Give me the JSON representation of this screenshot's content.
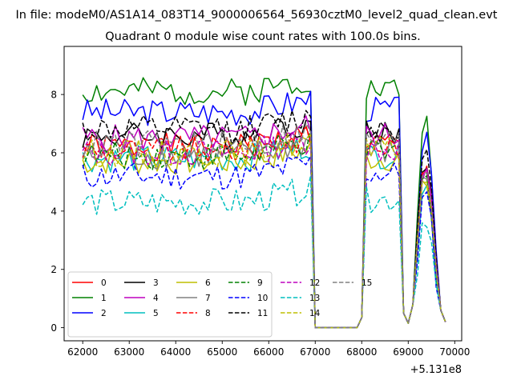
{
  "figure": {
    "suptitle": "In file: modeM0/AS1A14_083T14_9000006564_56930cztM0_level2_quad_clean.evt",
    "offset_label": "+5.131e8"
  },
  "chart_data": {
    "type": "line",
    "title": "Quadrant 0 module wise count rates with 100.0s bins.",
    "xlabel": "",
    "ylabel": "",
    "x_offset": 513100000,
    "xlim": [
      61600,
      70150
    ],
    "ylim": [
      -0.45,
      9.65
    ],
    "xticks": [
      62000,
      63000,
      64000,
      65000,
      66000,
      67000,
      68000,
      69000,
      70000
    ],
    "yticks": [
      0,
      2,
      4,
      6,
      8
    ],
    "grid": false,
    "legend": {
      "location": "lower-left",
      "columns": 6
    },
    "segments": [
      {
        "start": 62000,
        "end": 66900,
        "step": 100
      },
      {
        "start": 67000,
        "end": 67900,
        "step": 100
      },
      {
        "start": 68000,
        "end": 68900,
        "step": 100
      },
      {
        "start": 69000,
        "end": 69800,
        "step": 100
      }
    ],
    "series": [
      {
        "name": "0",
        "color": "#ff0000",
        "dash": "solid",
        "level": 6.2,
        "seed": 1
      },
      {
        "name": "1",
        "color": "#008000",
        "dash": "solid",
        "level": 8.1,
        "seed": 2
      },
      {
        "name": "2",
        "color": "#0000ff",
        "dash": "solid",
        "level": 7.4,
        "seed": 3
      },
      {
        "name": "3",
        "color": "#000000",
        "dash": "solid",
        "level": 6.6,
        "seed": 4
      },
      {
        "name": "4",
        "color": "#bf00bf",
        "dash": "solid",
        "level": 6.5,
        "seed": 5
      },
      {
        "name": "5",
        "color": "#00bfbf",
        "dash": "solid",
        "level": 5.8,
        "seed": 6
      },
      {
        "name": "6",
        "color": "#bfbf00",
        "dash": "solid",
        "level": 5.7,
        "seed": 7
      },
      {
        "name": "7",
        "color": "#808080",
        "dash": "solid",
        "level": 5.9,
        "seed": 8
      },
      {
        "name": "8",
        "color": "#ff0000",
        "dash": "dashed",
        "level": 6.1,
        "seed": 9
      },
      {
        "name": "9",
        "color": "#008000",
        "dash": "dashed",
        "level": 5.9,
        "seed": 10
      },
      {
        "name": "10",
        "color": "#0000ff",
        "dash": "dashed",
        "level": 5.2,
        "seed": 11
      },
      {
        "name": "11",
        "color": "#000000",
        "dash": "dashed",
        "level": 6.8,
        "seed": 12
      },
      {
        "name": "12",
        "color": "#bf00bf",
        "dash": "dashed",
        "level": 6.0,
        "seed": 13
      },
      {
        "name": "13",
        "color": "#00bfbf",
        "dash": "dashed",
        "level": 4.3,
        "seed": 14
      },
      {
        "name": "14",
        "color": "#bfbf00",
        "dash": "dashed",
        "level": 6.0,
        "seed": 15
      },
      {
        "name": "15",
        "color": "#808080",
        "dash": "dashed",
        "level": 6.3,
        "seed": 16
      }
    ]
  }
}
